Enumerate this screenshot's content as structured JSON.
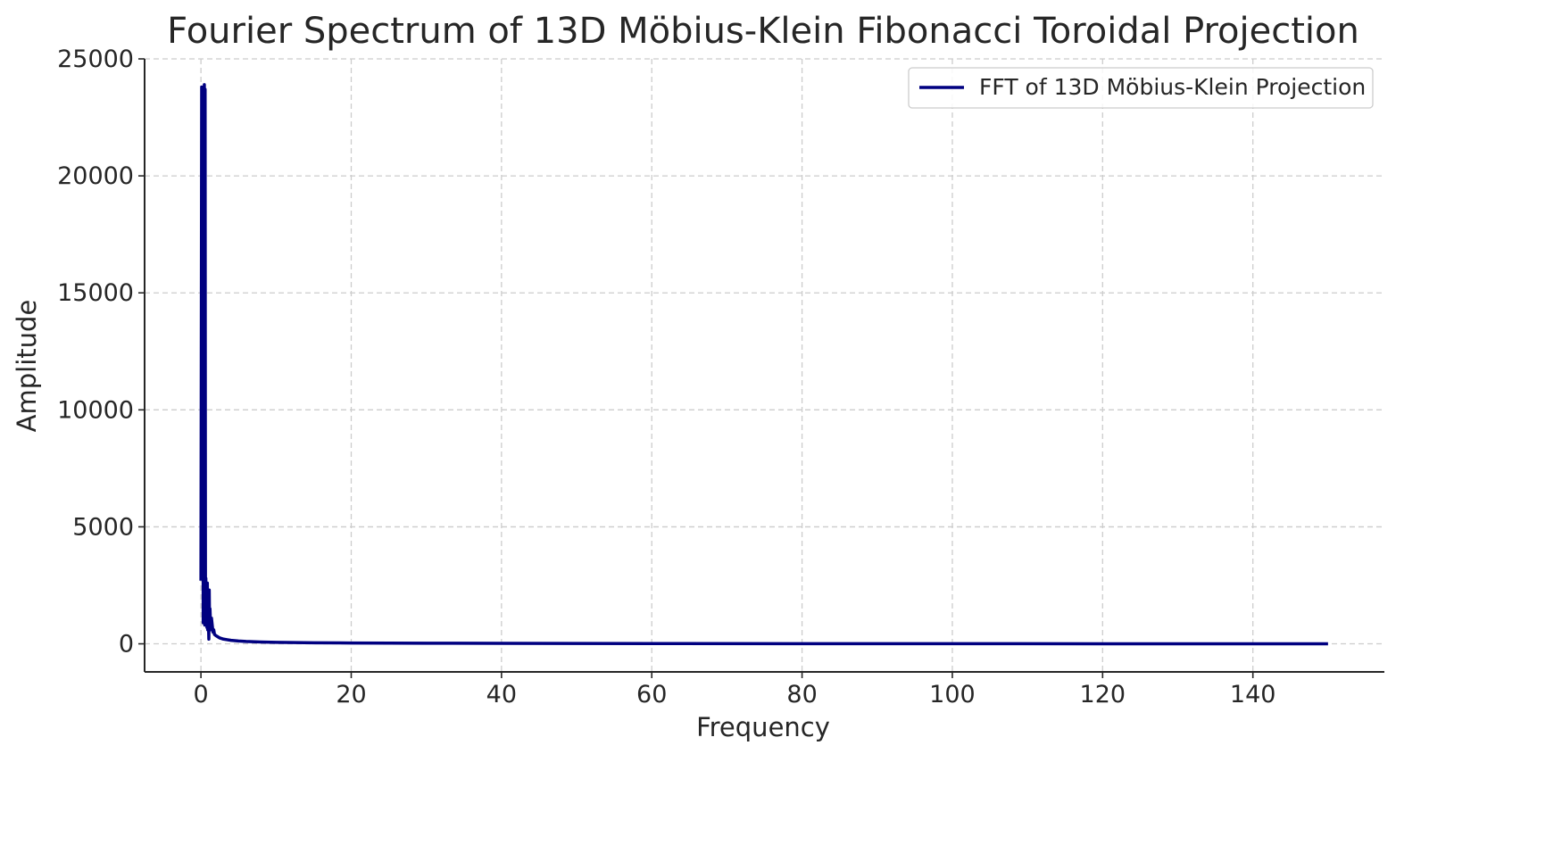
{
  "chart_data": {
    "type": "line",
    "title": "Fourier Spectrum of 13D Möbius-Klein Fibonacci Toroidal Projection",
    "xlabel": "Frequency",
    "ylabel": "Amplitude",
    "xlim": [
      -7.5,
      157.5
    ],
    "ylim": [
      -1200,
      25000
    ],
    "xticks": [
      0,
      20,
      40,
      60,
      80,
      100,
      120,
      140
    ],
    "yticks": [
      0,
      5000,
      10000,
      15000,
      20000,
      25000
    ],
    "grid": true,
    "legend_position": "upper right",
    "series": [
      {
        "name": "FFT of 13D Möbius-Klein Projection",
        "color": "#000080",
        "x": [
          0,
          0.1,
          0.2,
          0.25,
          0.3,
          0.35,
          0.4,
          0.45,
          0.5,
          0.55,
          0.6,
          0.65,
          0.7,
          0.75,
          0.8,
          0.85,
          0.9,
          0.95,
          1.0,
          1.05,
          1.1,
          1.15,
          1.2,
          1.3,
          1.4,
          1.5,
          1.6,
          1.7,
          1.8,
          2.0,
          2.5,
          3,
          4,
          5,
          6,
          8,
          10,
          15,
          20,
          30,
          40,
          60,
          80,
          100,
          120,
          140,
          150
        ],
        "y": [
          2700,
          23800,
          3000,
          23700,
          900,
          23800,
          1000,
          23900,
          800,
          23700,
          1200,
          2800,
          900,
          2500,
          700,
          2600,
          600,
          2200,
          900,
          200,
          2300,
          700,
          1500,
          600,
          1100,
          800,
          500,
          600,
          400,
          350,
          250,
          200,
          150,
          120,
          100,
          80,
          65,
          45,
          35,
          25,
          20,
          12,
          8,
          5,
          3,
          2,
          1
        ]
      }
    ]
  }
}
